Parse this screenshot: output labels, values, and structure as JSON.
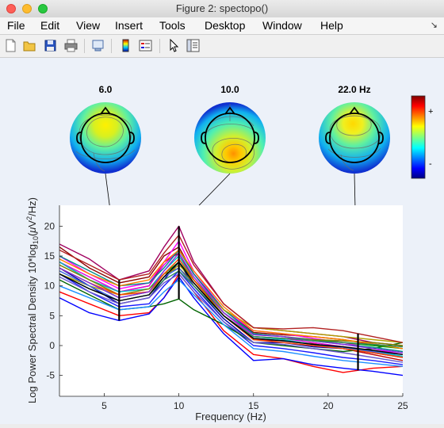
{
  "window": {
    "title": "Figure 2: spectopo()"
  },
  "menu": [
    {
      "label": "File"
    },
    {
      "label": "Edit"
    },
    {
      "label": "View"
    },
    {
      "label": "Insert"
    },
    {
      "label": "Tools"
    },
    {
      "label": "Desktop"
    },
    {
      "label": "Window"
    },
    {
      "label": "Help"
    }
  ],
  "toolbar": [
    "new-figure-icon",
    "open-file-icon",
    "save-icon",
    "print-icon",
    "link-icon",
    "colorbar-icon",
    "legend-icon",
    "pointer-icon",
    "property-editor-icon"
  ],
  "topomaps": [
    {
      "label": "6.0",
      "freq": 6
    },
    {
      "label": "10.0",
      "freq": 10
    },
    {
      "label": "22.0 Hz",
      "freq": 22
    }
  ],
  "colorbar": {
    "plus": "+",
    "minus": "-"
  },
  "chart_data": {
    "type": "line",
    "xlabel": "Frequency (Hz)",
    "ylabel_parts": {
      "main": "Log Power Spectral Density 10*log",
      "sub": "10",
      "unit_open": "(",
      "mu": "μ",
      "unit_mid": "V",
      "sup": "2",
      "unit_close": "/Hz)"
    },
    "xlim": [
      2,
      25
    ],
    "ylim": [
      -8.5,
      23.5
    ],
    "xticks": [
      5,
      10,
      15,
      20,
      25
    ],
    "yticks": [
      -5,
      0,
      5,
      10,
      15,
      20
    ],
    "x": [
      2,
      4,
      6,
      8,
      9,
      10,
      11,
      13,
      15,
      17,
      19,
      21,
      23,
      25
    ],
    "series": [
      {
        "color": "#c00000",
        "values": [
          14,
          11,
          9,
          10,
          14,
          15.5,
          11,
          5,
          1,
          0.8,
          0.3,
          -0.5,
          -1.5,
          -2.5
        ]
      },
      {
        "color": "#ff0000",
        "values": [
          9,
          7,
          5,
          5.5,
          8,
          12,
          9,
          2.5,
          -1.5,
          -2.2,
          -3.5,
          -4.5,
          -3.8,
          -3.5
        ]
      },
      {
        "color": "#0000ff",
        "values": [
          8,
          5.5,
          4.2,
          5.3,
          8,
          11.5,
          8,
          2,
          -2.5,
          -2.2,
          -3.2,
          -3.8,
          -4.3,
          -5
        ]
      },
      {
        "color": "#1a1aff",
        "values": [
          12,
          9,
          6.5,
          7,
          10,
          12.5,
          9.5,
          4,
          0,
          -0.5,
          -1.2,
          -2,
          -2.5,
          -3.2
        ]
      },
      {
        "color": "#0000a0",
        "values": [
          13,
          10,
          7,
          8,
          11,
          14,
          10,
          4.5,
          0.5,
          0.5,
          -0.2,
          -0.5,
          -1.2,
          -2
        ]
      },
      {
        "color": "#8b0000",
        "values": [
          16.5,
          13,
          10.5,
          11.5,
          15,
          16.5,
          12,
          6,
          2.2,
          1.8,
          1.5,
          1,
          0.2,
          -0.5
        ]
      },
      {
        "color": "#a00060",
        "values": [
          17,
          14.5,
          11,
          12.5,
          16.5,
          20,
          14,
          7,
          3,
          2.5,
          2,
          1.5,
          0.5,
          0
        ]
      },
      {
        "color": "#ff00ff",
        "values": [
          15,
          12,
          9.5,
          10.5,
          14,
          17.5,
          12.5,
          6,
          2.5,
          2,
          1.2,
          0.5,
          -0.5,
          -1.5
        ]
      },
      {
        "color": "#e000e0",
        "values": [
          14,
          11.5,
          9,
          10,
          13.5,
          16,
          12,
          5.5,
          1.5,
          1.2,
          0.5,
          -0.2,
          -1,
          -2
        ]
      },
      {
        "color": "#006400",
        "values": [
          11,
          8.5,
          6,
          6.5,
          7,
          7.8,
          6,
          3.5,
          0.5,
          0,
          -0.5,
          -1,
          -0.5,
          0.5
        ]
      },
      {
        "color": "#00a000",
        "values": [
          13,
          10.5,
          8,
          9,
          12,
          14,
          11,
          5.5,
          2,
          1.5,
          1,
          0.5,
          0,
          -0.5
        ]
      },
      {
        "color": "#00c0c0",
        "values": [
          14,
          11,
          9,
          9.5,
          12.5,
          15,
          11,
          5,
          1.5,
          1,
          0.2,
          -0.5,
          -1,
          -1.8
        ]
      },
      {
        "color": "#008b8b",
        "values": [
          15,
          12.5,
          10,
          10.5,
          13,
          16,
          12,
          6,
          2,
          1.5,
          0.8,
          0.2,
          -0.3,
          -1
        ]
      },
      {
        "color": "#b0a000",
        "values": [
          12,
          10,
          8.5,
          9,
          11.5,
          13.5,
          11,
          6,
          3,
          2.5,
          2,
          1.5,
          1,
          0.5
        ]
      },
      {
        "color": "#808000",
        "values": [
          13.5,
          11,
          8.5,
          9.5,
          12,
          13,
          10.5,
          5,
          1.5,
          1.2,
          1,
          0.8,
          0.5,
          0
        ]
      },
      {
        "color": "#ff8000",
        "values": [
          14.5,
          12,
          10,
          11,
          14,
          16,
          12.5,
          6.5,
          2.5,
          2,
          1.5,
          1,
          0.3,
          -0.5
        ]
      },
      {
        "color": "#ff4500",
        "values": [
          13,
          10.5,
          8.5,
          9,
          12,
          14.5,
          11,
          5,
          1,
          0.5,
          0,
          -0.5,
          -1.2,
          -2
        ]
      },
      {
        "color": "#4169e1",
        "values": [
          12.5,
          10,
          7.5,
          8.5,
          11.5,
          13,
          10,
          5,
          1.2,
          0.8,
          0.2,
          -0.3,
          -1,
          -1.5
        ]
      },
      {
        "color": "#6a5acd",
        "values": [
          11.5,
          9,
          7,
          8,
          10.5,
          12,
          9,
          4,
          0.5,
          0.2,
          -0.5,
          -1.2,
          -2,
          -2.8
        ]
      },
      {
        "color": "#8a2be2",
        "values": [
          13,
          10.5,
          8,
          9,
          12.5,
          15.5,
          11.5,
          5.5,
          1.8,
          1.5,
          0.8,
          0.2,
          -0.5,
          -1.2
        ]
      },
      {
        "color": "#2e8b57",
        "values": [
          12,
          9.5,
          7.5,
          8.5,
          11,
          12.5,
          10,
          5,
          1.5,
          1.2,
          0.8,
          0.5,
          0.2,
          -0.2
        ]
      },
      {
        "color": "#000000",
        "values": [
          12,
          9.5,
          7.5,
          8.5,
          11.5,
          14,
          10.5,
          5,
          1.2,
          0.8,
          0.2,
          -0.2,
          -0.8,
          -1.5
        ]
      },
      {
        "color": "#b22222",
        "values": [
          16,
          13.5,
          11,
          12,
          15.5,
          18.5,
          13.5,
          7,
          3,
          2.8,
          3,
          2.5,
          1.5,
          0.5
        ]
      },
      {
        "color": "#1e90ff",
        "values": [
          10,
          8,
          6,
          6.5,
          9,
          11,
          8.5,
          3.5,
          -0.5,
          -1,
          -1.8,
          -2.5,
          -3,
          -3.5
        ]
      }
    ]
  }
}
